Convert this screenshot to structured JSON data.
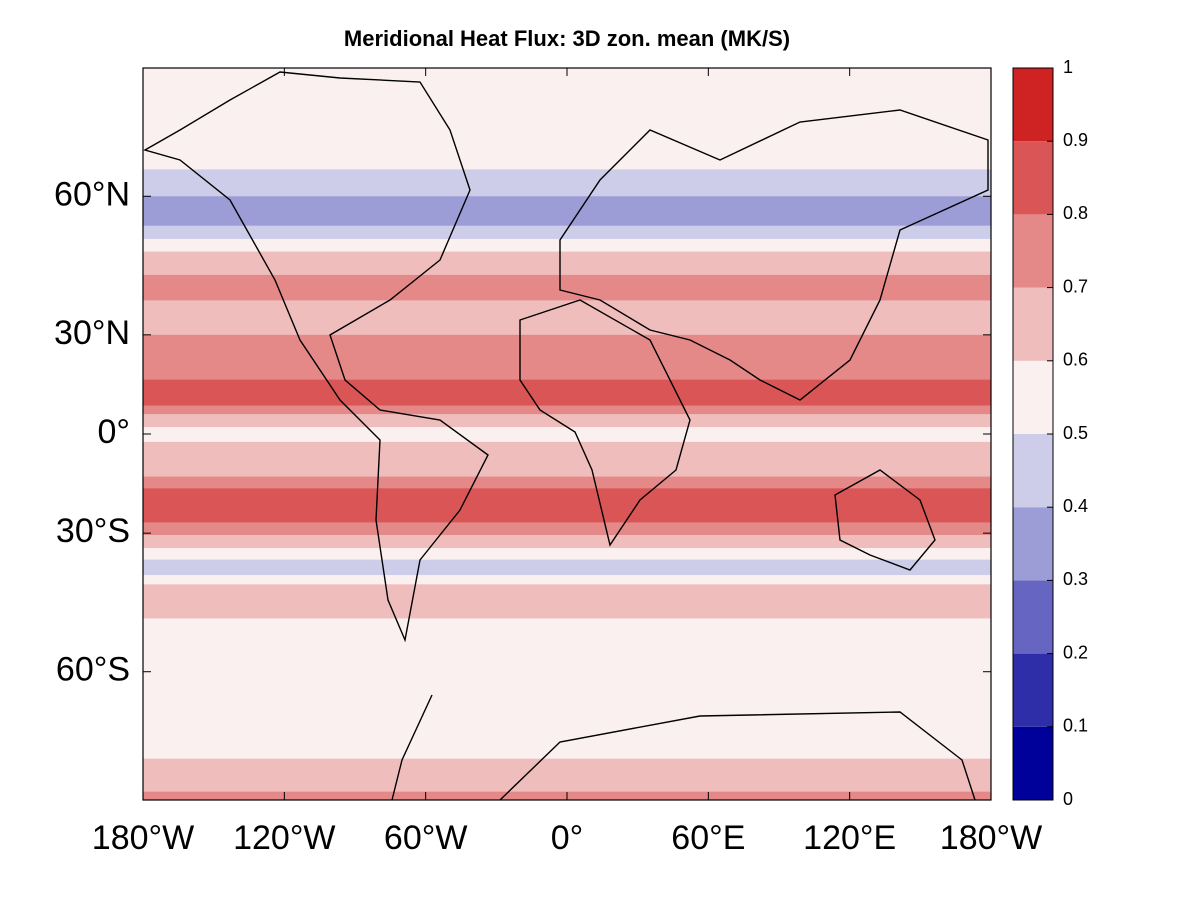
{
  "chart_data": {
    "type": "zonal-map",
    "title": "Meridional Heat Flux: 3D zon. mean (MK/S)",
    "projection": "mercator",
    "xlim": [
      -180,
      180
    ],
    "ylim": [
      -75,
      75
    ],
    "xticks": [
      {
        "value": -180,
        "label": "180°W"
      },
      {
        "value": -120,
        "label": "120°W"
      },
      {
        "value": -60,
        "label": "60°W"
      },
      {
        "value": 0,
        "label": "0°"
      },
      {
        "value": 60,
        "label": "60°E"
      },
      {
        "value": 120,
        "label": "120°E"
      },
      {
        "value": 180,
        "label": "180°W"
      }
    ],
    "yticks": [
      {
        "value": 60,
        "label": "60°N"
      },
      {
        "value": 30,
        "label": "30°N"
      },
      {
        "value": 0,
        "label": "0°"
      },
      {
        "value": -30,
        "label": "30°S"
      },
      {
        "value": -60,
        "label": "60°S"
      }
    ],
    "lat_edges": [
      75,
      64,
      60,
      55,
      52.5,
      50,
      45,
      39,
      30,
      17,
      9,
      6.3,
      2.2,
      -2.5,
      -13.4,
      -17,
      -27,
      -30.5,
      -34,
      -37,
      -40.8,
      -43,
      -50.4,
      -71.2,
      -74.3,
      -75
    ],
    "values": [
      0.55,
      0.45,
      0.35,
      0.45,
      0.55,
      0.65,
      0.75,
      0.65,
      0.75,
      0.85,
      0.75,
      0.65,
      0.55,
      0.65,
      0.75,
      0.85,
      0.75,
      0.65,
      0.55,
      0.45,
      0.55,
      0.65,
      0.55,
      0.65,
      0.75
    ],
    "clim": [
      0,
      1
    ],
    "cticks": [
      0,
      0.1,
      0.2,
      0.3,
      0.4,
      0.5,
      0.6,
      0.7,
      0.8,
      0.9,
      1
    ],
    "colors": [
      "#00009a",
      "#2e2ea8",
      "#6666c2",
      "#9c9cd6",
      "#cdcde9",
      "#fbf0f0",
      "#f0bdbd",
      "#e48888",
      "#da5656",
      "#cf2323"
    ]
  }
}
